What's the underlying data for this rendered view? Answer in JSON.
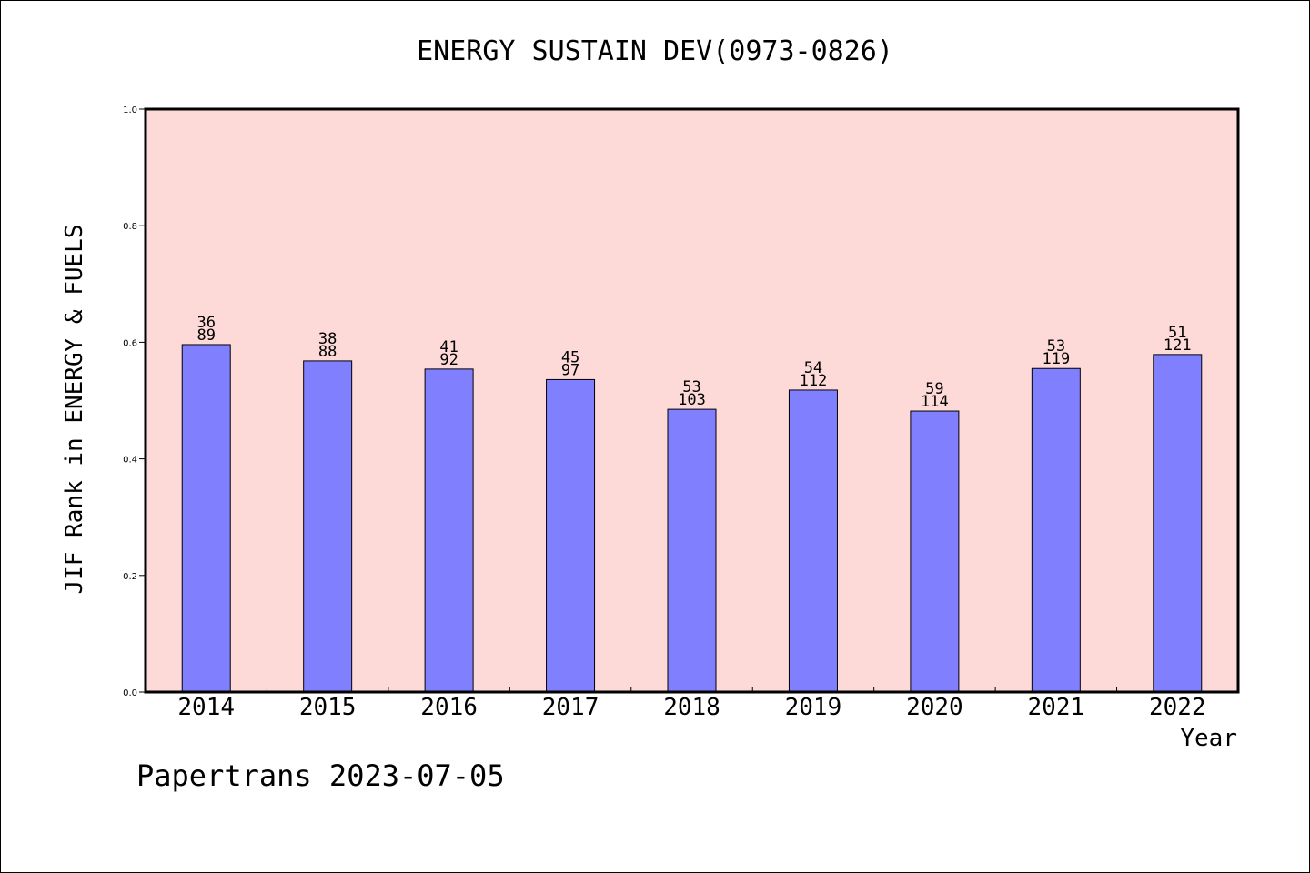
{
  "chart_data": {
    "type": "bar",
    "title": "ENERGY SUSTAIN DEV(0973-0826)",
    "ylabel": "JIF Rank in ENERGY & FUELS",
    "xlabel": "Year",
    "ylim": [
      0,
      1.0
    ],
    "yticks": [
      "0.0",
      "0.2",
      "0.4",
      "0.6",
      "0.8",
      "1.0"
    ],
    "categories": [
      "2014",
      "2015",
      "2016",
      "2017",
      "2018",
      "2019",
      "2020",
      "2021",
      "2022"
    ],
    "values": [
      0.596,
      0.568,
      0.554,
      0.536,
      0.485,
      0.518,
      0.482,
      0.555,
      0.579
    ],
    "labels_top": [
      "36",
      "38",
      "41",
      "45",
      "53",
      "54",
      "59",
      "53",
      "51"
    ],
    "labels_bottom": [
      "89",
      "88",
      "92",
      "97",
      "103",
      "112",
      "114",
      "119",
      "121"
    ],
    "colors": {
      "bar": "#8080ff",
      "plot_bg": "#fddad8",
      "frame": "#000000"
    },
    "grid": false
  },
  "footer": {
    "credit": "Papertrans 2023-07-05"
  }
}
